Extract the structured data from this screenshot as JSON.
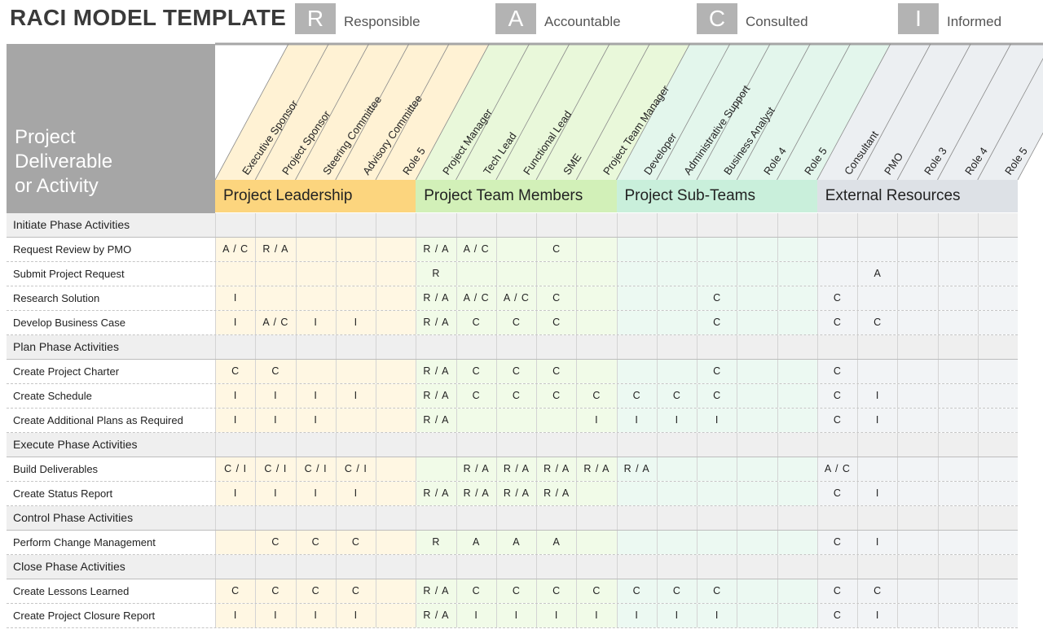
{
  "title": "RACI MODEL TEMPLATE",
  "legend": [
    {
      "letter": "R",
      "label": "Responsible"
    },
    {
      "letter": "A",
      "label": "Accountable"
    },
    {
      "letter": "C",
      "label": "Consulted"
    },
    {
      "letter": "I",
      "label": "Informed"
    }
  ],
  "header_label": "Project\nDeliverable\nor Activity",
  "groups": [
    {
      "name": "Project Leadership",
      "color": "#fcd57e",
      "band_color": "#fff2d4",
      "light_color": "#fff7e3",
      "roles": [
        "Executive Sponsor",
        "Project Sponsor",
        "Steering Committee",
        "Advisory Committee",
        "Role 5"
      ]
    },
    {
      "name": "Project Team Members",
      "color": "#d2f0b8",
      "band_color": "#e9f8da",
      "light_color": "#f1fbe8",
      "roles": [
        "Project Manager",
        "Tech Lead",
        "Functional Lead",
        "SME",
        "Project Team Manager"
      ]
    },
    {
      "name": "Project Sub-Teams",
      "color": "#c9efdb",
      "band_color": "#e3f6ec",
      "light_color": "#ecf9f2",
      "roles": [
        "Developer",
        "Administrative Support",
        "Business Analyst",
        "Role 4",
        "Role 5"
      ]
    },
    {
      "name": "External Resources",
      "color": "#dde1e6",
      "band_color": "#eceff2",
      "light_color": "#f2f4f6",
      "roles": [
        "Consultant",
        "PMO",
        "Role 3",
        "Role 4",
        "Role 5"
      ]
    }
  ],
  "rows": [
    {
      "label": "Initiate Phase Activities",
      "phase": true,
      "cells": [
        "",
        "",
        "",
        "",
        "",
        "",
        "",
        "",
        "",
        "",
        "",
        "",
        "",
        "",
        "",
        "",
        "",
        "",
        "",
        ""
      ]
    },
    {
      "label": "Request Review by PMO",
      "cells": [
        "A / C",
        "R / A",
        "",
        "",
        "",
        "R / A",
        "A / C",
        "",
        "C",
        "",
        "",
        "",
        "",
        "",
        "",
        "",
        "",
        "",
        "",
        ""
      ]
    },
    {
      "label": "Submit Project Request",
      "cells": [
        "",
        "",
        "",
        "",
        "",
        "R",
        "",
        "",
        "",
        "",
        "",
        "",
        "",
        "",
        "",
        "",
        "A",
        "",
        "",
        ""
      ]
    },
    {
      "label": "Research Solution",
      "cells": [
        "I",
        "",
        "",
        "",
        "",
        "R / A",
        "A / C",
        "A / C",
        "C",
        "",
        "",
        "",
        "C",
        "",
        "",
        "C",
        "",
        "",
        "",
        ""
      ]
    },
    {
      "label": "Develop Business Case",
      "cells": [
        "I",
        "A / C",
        "I",
        "I",
        "",
        "R / A",
        "C",
        "C",
        "C",
        "",
        "",
        "",
        "C",
        "",
        "",
        "C",
        "C",
        "",
        "",
        ""
      ]
    },
    {
      "label": "Plan Phase Activities",
      "phase": true,
      "cells": [
        "",
        "",
        "",
        "",
        "",
        "",
        "",
        "",
        "",
        "",
        "",
        "",
        "",
        "",
        "",
        "",
        "",
        "",
        "",
        ""
      ]
    },
    {
      "label": "Create Project Charter",
      "cells": [
        "C",
        "C",
        "",
        "",
        "",
        "R / A",
        "C",
        "C",
        "C",
        "",
        "",
        "",
        "C",
        "",
        "",
        "C",
        "",
        "",
        "",
        ""
      ]
    },
    {
      "label": "Create Schedule",
      "cells": [
        "I",
        "I",
        "I",
        "I",
        "",
        "R / A",
        "C",
        "C",
        "C",
        "C",
        "C",
        "C",
        "C",
        "",
        "",
        "C",
        "I",
        "",
        "",
        ""
      ]
    },
    {
      "label": "Create Additional Plans as Required",
      "cells": [
        "I",
        "I",
        "I",
        "",
        "",
        "R / A",
        "",
        "",
        "",
        "I",
        "I",
        "I",
        "I",
        "",
        "",
        "C",
        "I",
        "",
        "",
        ""
      ]
    },
    {
      "label": "Execute Phase Activities",
      "phase": true,
      "cells": [
        "",
        "",
        "",
        "",
        "",
        "",
        "",
        "",
        "",
        "",
        "",
        "",
        "",
        "",
        "",
        "",
        "",
        "",
        "",
        ""
      ]
    },
    {
      "label": "Build Deliverables",
      "cells": [
        "C / I",
        "C / I",
        "C / I",
        "C / I",
        "",
        "",
        "R / A",
        "R / A",
        "R / A",
        "R / A",
        "R / A",
        "",
        "",
        "",
        "",
        "A / C",
        "",
        "",
        "",
        ""
      ]
    },
    {
      "label": "Create Status Report",
      "cells": [
        "I",
        "I",
        "I",
        "I",
        "",
        "R / A",
        "R / A",
        "R / A",
        "R / A",
        "",
        "",
        "",
        "",
        "",
        "",
        "C",
        "I",
        "",
        "",
        ""
      ]
    },
    {
      "label": "Control Phase Activities",
      "phase": true,
      "cells": [
        "",
        "",
        "",
        "",
        "",
        "",
        "",
        "",
        "",
        "",
        "",
        "",
        "",
        "",
        "",
        "",
        "",
        "",
        "",
        ""
      ]
    },
    {
      "label": "Perform Change Management",
      "cells": [
        "",
        "C",
        "C",
        "C",
        "",
        "R",
        "A",
        "A",
        "A",
        "",
        "",
        "",
        "",
        "",
        "",
        "C",
        "I",
        "",
        "",
        ""
      ]
    },
    {
      "label": "Close Phase Activities",
      "phase": true,
      "cells": [
        "",
        "",
        "",
        "",
        "",
        "",
        "",
        "",
        "",
        "",
        "",
        "",
        "",
        "",
        "",
        "",
        "",
        "",
        "",
        ""
      ]
    },
    {
      "label": "Create Lessons Learned",
      "cells": [
        "C",
        "C",
        "C",
        "C",
        "",
        "R / A",
        "C",
        "C",
        "C",
        "C",
        "C",
        "C",
        "C",
        "",
        "",
        "C",
        "C",
        "",
        "",
        ""
      ]
    },
    {
      "label": "Create Project Closure Report",
      "cells": [
        "I",
        "I",
        "I",
        "I",
        "",
        "R / A",
        "I",
        "I",
        "I",
        "I",
        "I",
        "I",
        "I",
        "",
        "",
        "C",
        "I",
        "",
        "",
        ""
      ]
    }
  ]
}
